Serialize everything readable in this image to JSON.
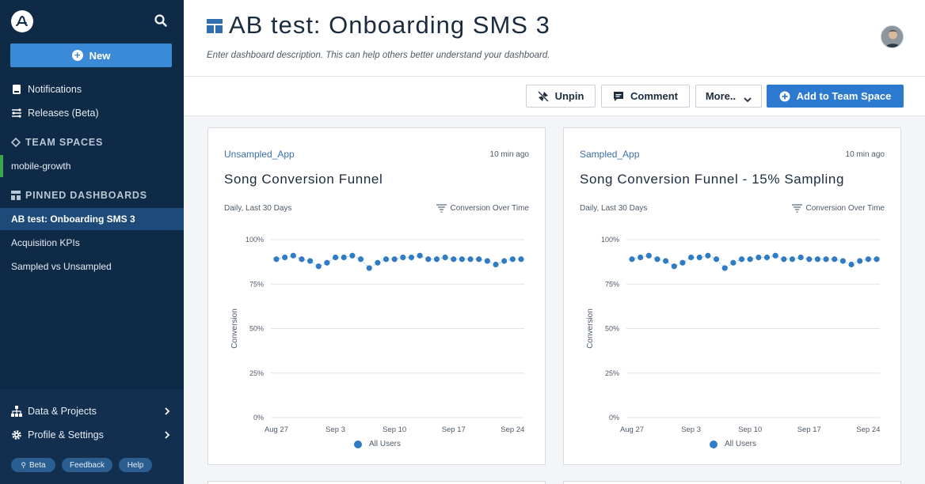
{
  "sidebar": {
    "new_label": "New",
    "nav": [
      {
        "label": "Notifications",
        "icon": "notification-icon"
      },
      {
        "label": "Releases (Beta)",
        "icon": "releases-icon"
      }
    ],
    "team_spaces_heading": "TEAM SPACES",
    "team_spaces": [
      "mobile-growth"
    ],
    "pinned_heading": "PINNED DASHBOARDS",
    "pinned": [
      {
        "label": "AB test: Onboarding SMS 3",
        "active": true
      },
      {
        "label": "Acquisition KPIs",
        "active": false
      },
      {
        "label": "Sampled vs Unsampled",
        "active": false
      }
    ],
    "bottom": [
      {
        "label": "Data & Projects",
        "icon": "hierarchy-icon"
      },
      {
        "label": "Profile & Settings",
        "icon": "gear-icon"
      }
    ],
    "pills": {
      "beta": "Beta",
      "feedback": "Feedback",
      "help": "Help"
    }
  },
  "header": {
    "title": "AB test: Onboarding SMS 3",
    "description": "Enter dashboard description. This can help others better understand your dashboard."
  },
  "toolbar": {
    "unpin": "Unpin",
    "comment": "Comment",
    "more": "More..",
    "add_team_space": "Add to Team Space"
  },
  "colors": {
    "accent": "#2c7ad0",
    "sidebar": "#0f2a46",
    "series": "#2f7bc4"
  },
  "cards": [
    {
      "source": "Unsampled_App",
      "time": "10 min ago",
      "title": "Song Conversion Funnel",
      "range": "Daily, Last 30 Days",
      "chart_type_label": "Conversion Over Time",
      "legend": "All Users"
    },
    {
      "source": "Sampled_App",
      "time": "10 min ago",
      "title": "Song Conversion Funnel - 15% Sampling",
      "range": "Daily, Last 30 Days",
      "chart_type_label": "Conversion Over Time",
      "legend": "All Users"
    }
  ],
  "chart_data": [
    {
      "type": "line",
      "title": "Song Conversion Funnel",
      "ylabel": "Conversion",
      "ylim": [
        0,
        100
      ],
      "yticks": [
        "0%",
        "25%",
        "50%",
        "75%",
        "100%"
      ],
      "xticks": [
        "Aug 27",
        "Sep 3",
        "Sep 10",
        "Sep 17",
        "Sep 24"
      ],
      "x_start": "Aug 27",
      "series": [
        {
          "name": "All Users",
          "values": [
            89,
            90,
            91,
            89,
            88,
            85,
            87,
            90,
            90,
            91,
            89,
            84,
            87,
            89,
            89,
            90,
            90,
            91,
            89,
            89,
            90,
            89,
            89,
            89,
            89,
            88,
            86,
            88,
            89,
            89
          ]
        }
      ]
    },
    {
      "type": "line",
      "title": "Song Conversion Funnel - 15% Sampling",
      "ylabel": "Conversion",
      "ylim": [
        0,
        100
      ],
      "yticks": [
        "0%",
        "25%",
        "50%",
        "75%",
        "100%"
      ],
      "xticks": [
        "Aug 27",
        "Sep 3",
        "Sep 10",
        "Sep 17",
        "Sep 24"
      ],
      "x_start": "Aug 27",
      "series": [
        {
          "name": "All Users",
          "values": [
            89,
            90,
            91,
            89,
            88,
            85,
            87,
            90,
            90,
            91,
            89,
            84,
            87,
            89,
            89,
            90,
            90,
            91,
            89,
            89,
            90,
            89,
            89,
            89,
            89,
            88,
            86,
            88,
            89,
            89
          ]
        }
      ]
    }
  ]
}
